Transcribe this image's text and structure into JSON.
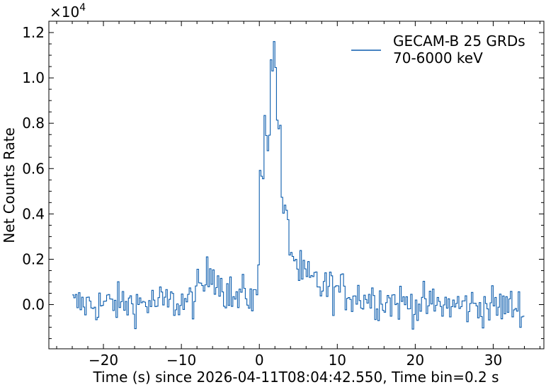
{
  "chart_data": {
    "type": "line",
    "title": "",
    "xlabel": "Time (s) since 2026-04-11T08:04:42.550, Time bin=0.2 s",
    "ylabel": "Net Counts Rate",
    "y_multiplier_label": "×10",
    "y_multiplier_exponent": "4",
    "xlim": [
      -27,
      36.5
    ],
    "ylim": [
      -1950,
      12500
    ],
    "x_ticks": [
      -20,
      -10,
      0,
      10,
      20,
      30
    ],
    "x_tick_labels": [
      "−20",
      "−10",
      "0",
      "10",
      "20",
      "30"
    ],
    "y_ticks": [
      0,
      2000,
      4000,
      6000,
      8000,
      10000,
      12000
    ],
    "y_tick_labels": [
      "0.0",
      "0.2",
      "0.4",
      "0.6",
      "0.8",
      "1.0",
      "1.2"
    ],
    "x_minor_step": 2,
    "y_minor_step": 500,
    "grid": false,
    "legend_position": "top-right",
    "series": [
      {
        "name": "GECAM-B 25 GRDs\n70-6000 keV",
        "color": "#0b5cad",
        "bin_width": 0.2,
        "x_start": -24,
        "x_end": 34,
        "profile": [
          {
            "x": -24,
            "y": 0
          },
          {
            "x": -9,
            "y": 100
          },
          {
            "x": -7,
            "y": 900
          },
          {
            "x": -6,
            "y": 1700
          },
          {
            "x": -5,
            "y": 900
          },
          {
            "x": -3,
            "y": 200
          },
          {
            "x": -1.5,
            "y": 500
          },
          {
            "x": -0.4,
            "y": 100
          },
          {
            "x": -0.1,
            "y": 1800
          },
          {
            "x": 0.1,
            "y": 5000
          },
          {
            "x": 0.5,
            "y": 7000
          },
          {
            "x": 0.8,
            "y": 8600
          },
          {
            "x": 1.2,
            "y": 7400
          },
          {
            "x": 1.6,
            "y": 10400
          },
          {
            "x": 1.85,
            "y": 11200
          },
          {
            "x": 2.1,
            "y": 10600
          },
          {
            "x": 2.5,
            "y": 8000
          },
          {
            "x": 3.0,
            "y": 4300
          },
          {
            "x": 4.0,
            "y": 2600
          },
          {
            "x": 5.0,
            "y": 1500
          },
          {
            "x": 6.0,
            "y": 1100
          },
          {
            "x": 9.0,
            "y": 700
          },
          {
            "x": 14.0,
            "y": 300
          },
          {
            "x": 20.0,
            "y": 0
          },
          {
            "x": 34.0,
            "y": -100
          }
        ],
        "noise_amplitude": 420
      }
    ]
  }
}
